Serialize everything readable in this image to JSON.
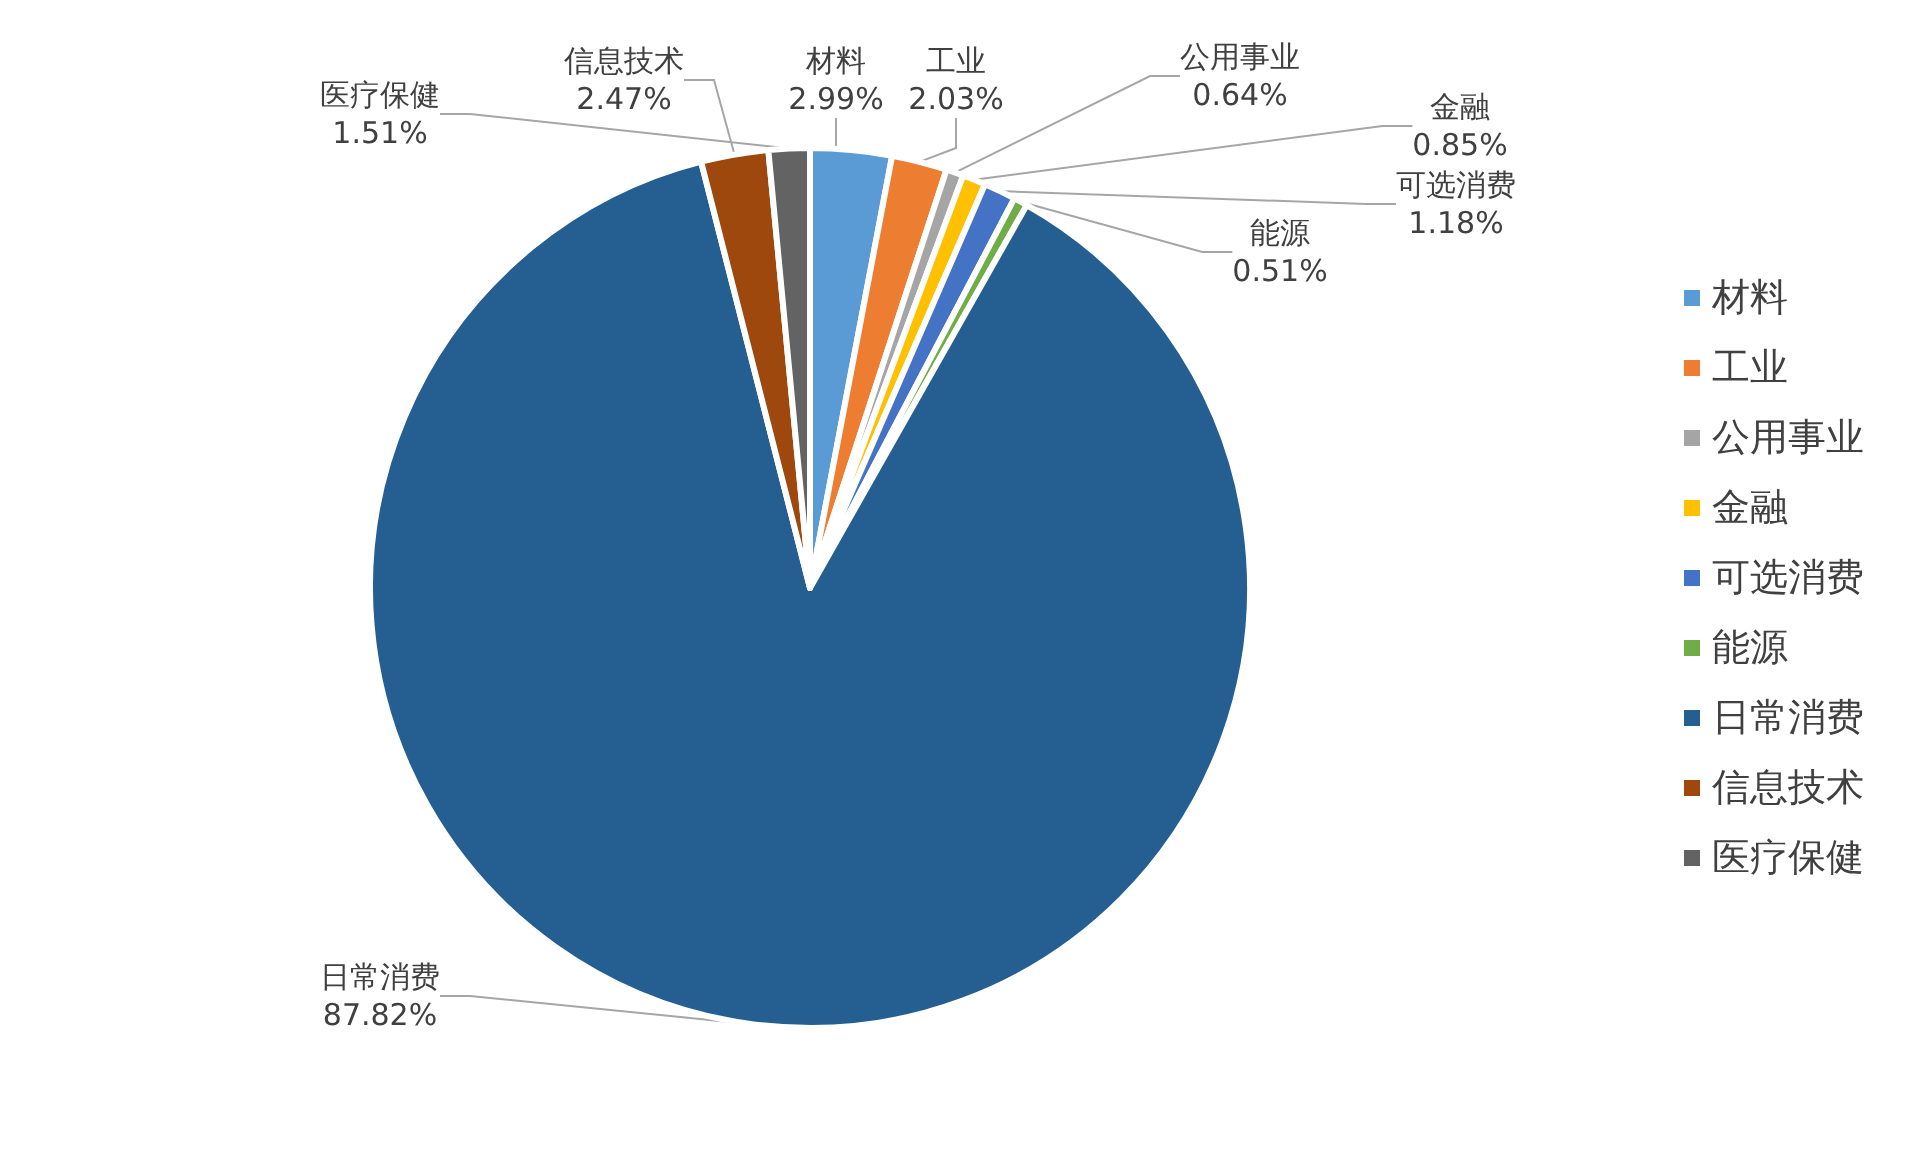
{
  "chart_data": {
    "type": "pie",
    "categories": [
      "材料",
      "工业",
      "公用事业",
      "金融",
      "可选消费",
      "能源",
      "日常消费",
      "信息技术",
      "医疗保健"
    ],
    "values": [
      2.99,
      2.03,
      0.64,
      0.85,
      1.18,
      0.51,
      87.82,
      2.47,
      1.51
    ],
    "value_labels": [
      "2.99%",
      "2.03%",
      "0.64%",
      "0.85%",
      "1.18%",
      "0.51%",
      "87.82%",
      "2.47%",
      "1.51%"
    ],
    "colors": [
      "#5b9bd5",
      "#ed7d31",
      "#a5a5a5",
      "#ffc000",
      "#4472c4",
      "#70ad47",
      "#255e91",
      "#9e480e",
      "#636363"
    ],
    "legend": "right"
  }
}
